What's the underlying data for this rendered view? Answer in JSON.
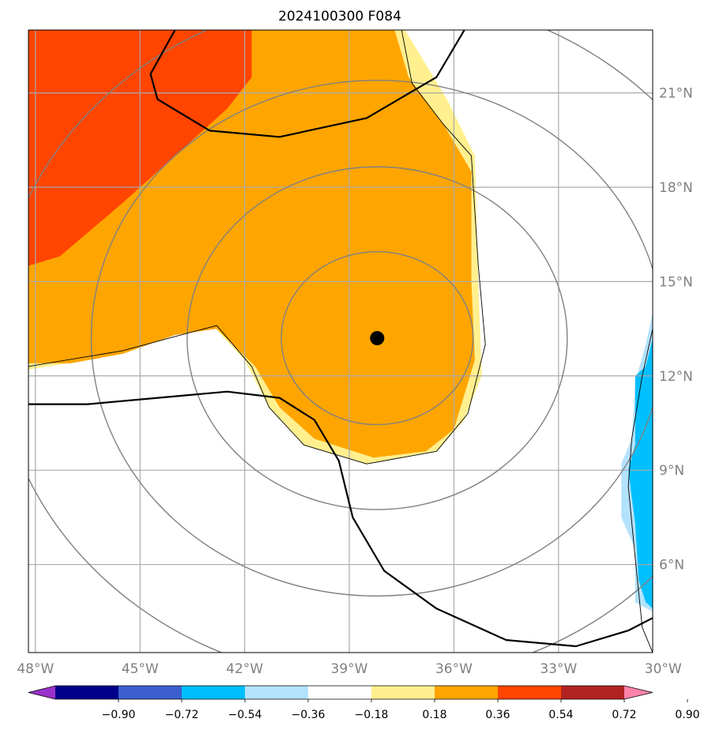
{
  "chart_data": {
    "type": "heatmap",
    "title": "2024100300 F084",
    "projection": "map lon/lat",
    "xlim": [
      -48.2,
      -30.3
    ],
    "ylim": [
      3.2,
      23.0
    ],
    "x_ticks": [
      "48°W",
      "45°W",
      "42°W",
      "39°W",
      "36°W",
      "33°W",
      "30°W"
    ],
    "x_tick_values": [
      -48,
      -45,
      -42,
      -39,
      -36,
      -33,
      -30
    ],
    "y_ticks": [
      "6°N",
      "9°N",
      "12°N",
      "15°N",
      "18°N",
      "21°N"
    ],
    "y_tick_values": [
      6,
      9,
      12,
      15,
      18,
      21
    ],
    "grid": true,
    "storm_center": {
      "lon": -38.2,
      "lat": 13.2
    },
    "range_rings_deg": [
      2.75,
      5.45,
      8.2,
      10.95
    ],
    "colorbar": {
      "orientation": "horizontal",
      "extend": "both",
      "tick_labels": [
        "−0.90",
        "−0.72",
        "−0.54",
        "−0.36",
        "−0.18",
        "0.18",
        "0.36",
        "0.54",
        "0.72",
        "0.90"
      ],
      "levels": [
        -0.9,
        -0.72,
        -0.54,
        -0.36,
        -0.18,
        0.18,
        0.36,
        0.54,
        0.72,
        0.9
      ],
      "colors": [
        "#9932cc",
        "#00008b",
        "#3a5fcd",
        "#00bfff",
        "#b3e2fd",
        "#ffffff",
        "#ffef8f",
        "#ffa500",
        "#ff4500",
        "#b22222",
        "#ff82ab"
      ]
    },
    "filled_regions": [
      {
        "level": "0.18–0.36",
        "color": "#ffef8f",
        "lonlat": [
          [
            -48.2,
            23.0
          ],
          [
            -37.4,
            23.0
          ],
          [
            -36.2,
            20.8
          ],
          [
            -35.4,
            19.0
          ],
          [
            -35.3,
            15.0
          ],
          [
            -35.2,
            12.0
          ],
          [
            -35.7,
            10.6
          ],
          [
            -36.5,
            9.6
          ],
          [
            -38.5,
            9.2
          ],
          [
            -40.3,
            9.8
          ],
          [
            -41.3,
            11.0
          ],
          [
            -42.0,
            12.5
          ],
          [
            -43.0,
            13.7
          ],
          [
            -44.5,
            13.5
          ],
          [
            -46.5,
            12.5
          ],
          [
            -48.2,
            12.2
          ]
        ]
      },
      {
        "level": "0.36–0.54",
        "color": "#ffa500",
        "lonlat": [
          [
            -48.2,
            23.0
          ],
          [
            -37.7,
            23.0
          ],
          [
            -37.3,
            21.5
          ],
          [
            -36.3,
            20.0
          ],
          [
            -35.5,
            18.5
          ],
          [
            -35.5,
            15.0
          ],
          [
            -35.4,
            12.5
          ],
          [
            -36.0,
            10.3
          ],
          [
            -36.8,
            9.6
          ],
          [
            -38.3,
            9.4
          ],
          [
            -40.0,
            10.0
          ],
          [
            -41.0,
            11.0
          ],
          [
            -41.7,
            12.3
          ],
          [
            -42.8,
            13.5
          ],
          [
            -44.0,
            13.3
          ],
          [
            -45.5,
            12.7
          ],
          [
            -47.0,
            12.4
          ],
          [
            -48.2,
            12.4
          ]
        ]
      },
      {
        "level": "0.54–0.72",
        "color": "#ff4500",
        "lonlat": [
          [
            -48.2,
            23.0
          ],
          [
            -41.8,
            23.0
          ],
          [
            -41.8,
            21.5
          ],
          [
            -42.5,
            20.5
          ],
          [
            -44.0,
            19.0
          ],
          [
            -45.5,
            17.5
          ],
          [
            -47.3,
            15.8
          ],
          [
            -48.2,
            15.5
          ]
        ]
      },
      {
        "level": "−0.36 – −0.18",
        "color": "#b3e2fd",
        "lonlat": [
          [
            -30.3,
            14.0
          ],
          [
            -30.5,
            13.0
          ],
          [
            -30.8,
            11.8
          ],
          [
            -30.9,
            10.0
          ],
          [
            -31.2,
            9.2
          ],
          [
            -31.2,
            7.5
          ],
          [
            -30.8,
            6.5
          ],
          [
            -30.8,
            4.8
          ],
          [
            -30.3,
            4.5
          ]
        ]
      },
      {
        "level": "−0.54 – −0.36",
        "color": "#00bfff",
        "lonlat": [
          [
            -30.3,
            13.2
          ],
          [
            -30.5,
            12.3
          ],
          [
            -30.8,
            12.0
          ],
          [
            -30.8,
            9.8
          ],
          [
            -31.0,
            9.0
          ],
          [
            -30.8,
            7.3
          ],
          [
            -30.7,
            5.5
          ],
          [
            -30.5,
            4.8
          ],
          [
            -30.3,
            4.6
          ]
        ]
      }
    ],
    "thin_contours": [
      {
        "lonlat": [
          [
            -37.5,
            23.0
          ],
          [
            -37.2,
            21.3
          ],
          [
            -36.3,
            20.0
          ],
          [
            -35.5,
            19.0
          ],
          [
            -35.3,
            15.5
          ],
          [
            -35.1,
            13.0
          ],
          [
            -35.6,
            10.8
          ],
          [
            -36.5,
            9.6
          ],
          [
            -38.5,
            9.2
          ],
          [
            -40.3,
            9.8
          ],
          [
            -41.3,
            11.0
          ],
          [
            -41.8,
            12.3
          ],
          [
            -42.8,
            13.6
          ],
          [
            -43.5,
            13.4
          ],
          [
            -45.5,
            12.8
          ],
          [
            -48.2,
            12.3
          ]
        ]
      },
      {
        "lonlat": [
          [
            -30.3,
            13.5
          ],
          [
            -30.6,
            12.0
          ],
          [
            -30.9,
            10.0
          ],
          [
            -31.0,
            8.5
          ],
          [
            -30.8,
            6.2
          ],
          [
            -30.6,
            4.0
          ],
          [
            -30.3,
            3.2
          ]
        ]
      }
    ],
    "thick_contours": [
      {
        "lonlat": [
          [
            -44.0,
            23.0
          ],
          [
            -44.7,
            21.6
          ],
          [
            -44.5,
            20.8
          ],
          [
            -43.0,
            19.8
          ],
          [
            -41.0,
            19.6
          ],
          [
            -38.5,
            20.2
          ],
          [
            -36.5,
            21.5
          ],
          [
            -35.7,
            23.0
          ]
        ]
      },
      {
        "lonlat": [
          [
            -48.2,
            11.1
          ],
          [
            -46.5,
            11.1
          ],
          [
            -44.5,
            11.3
          ],
          [
            -42.5,
            11.5
          ],
          [
            -41.0,
            11.3
          ],
          [
            -40.0,
            10.6
          ],
          [
            -39.3,
            9.3
          ],
          [
            -38.9,
            7.5
          ],
          [
            -38.0,
            5.8
          ],
          [
            -36.5,
            4.6
          ],
          [
            -34.5,
            3.6
          ],
          [
            -32.5,
            3.4
          ],
          [
            -31.0,
            3.9
          ],
          [
            -30.3,
            4.3
          ]
        ]
      }
    ]
  }
}
